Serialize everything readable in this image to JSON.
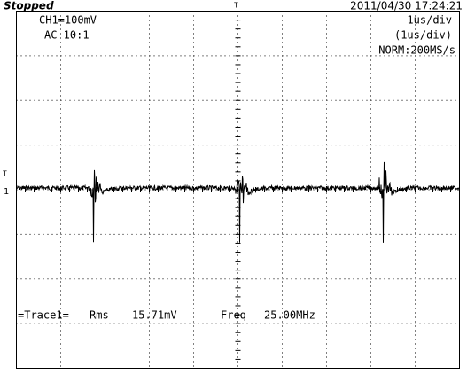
{
  "header": {
    "status": "Stopped",
    "timestamp": "2011/04/30  17:24:21"
  },
  "channel": {
    "scale": "CH1=100mV",
    "coupling": "AC  10:1"
  },
  "timebase": {
    "scale": "1us/div",
    "zoom": "(1us/div)",
    "mode": "NORM:200MS/s"
  },
  "markers": {
    "trigger": "T",
    "channel": "1"
  },
  "measurement": {
    "trace": "=Trace1=",
    "rms_label": "Rms",
    "rms_value": "15.71mV",
    "freq_label": "Freq",
    "freq_value": "25.00MHz"
  }
}
